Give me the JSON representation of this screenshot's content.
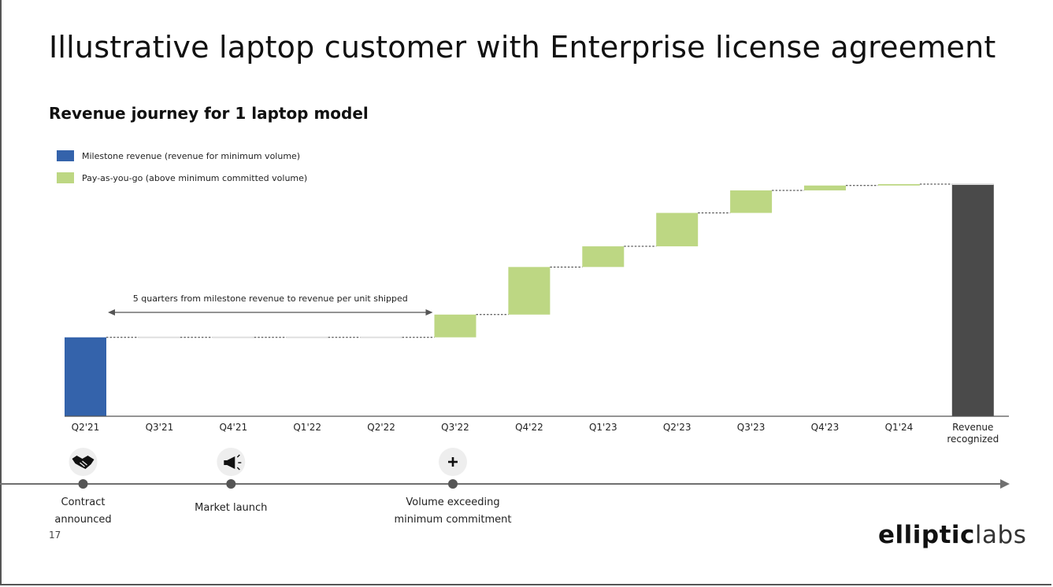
{
  "title": "Illustrative laptop customer with Enterprise license agreement",
  "subtitle": "Revenue journey for 1 laptop model",
  "page_number": "17",
  "logo": {
    "part1": "elliptic",
    "part2": "labs"
  },
  "colors": {
    "milestone": "#3463ab",
    "payg": "#bdd783",
    "total": "#4a4a4a",
    "axis": "#555555",
    "timeline": "#707070"
  },
  "chart_data": {
    "type": "bar",
    "subtype": "waterfall",
    "categories": [
      "Q2'21",
      "Q3'21",
      "Q4'21",
      "Q1'22",
      "Q2'22",
      "Q3'22",
      "Q4'22",
      "Q1'23",
      "Q2'23",
      "Q3'23",
      "Q4'23",
      "Q1'24",
      "Revenue recognized"
    ],
    "category_lines": [
      [
        "Q2'21"
      ],
      [
        "Q3'21"
      ],
      [
        "Q4'21"
      ],
      [
        "Q1'22"
      ],
      [
        "Q2'22"
      ],
      [
        "Q3'22"
      ],
      [
        "Q4'22"
      ],
      [
        "Q1'23"
      ],
      [
        "Q2'23"
      ],
      [
        "Q3'23"
      ],
      [
        "Q4'23"
      ],
      [
        "Q1'24"
      ],
      [
        "Revenue",
        "recognized"
      ]
    ],
    "series": [
      {
        "name": "Milestone revenue (revenue for minimum volume)",
        "kind": "milestone",
        "values": [
          34,
          0,
          0,
          0,
          0,
          0,
          0,
          0,
          0,
          0,
          0,
          0,
          0
        ]
      },
      {
        "name": "Pay-as-you-go (above minimum committed volume)",
        "kind": "payg",
        "values": [
          0,
          0,
          0,
          0,
          0,
          9.8,
          20.5,
          8.9,
          14.4,
          9.7,
          2.1,
          0.6,
          0
        ]
      }
    ],
    "total": {
      "category": "Revenue recognized",
      "value": 100
    },
    "ylim": [
      0,
      100
    ],
    "annotation": {
      "text": "5 quarters from milestone revenue to revenue per unit shipped",
      "from": "Q2'21",
      "to": "Q3'22"
    },
    "legend": "top-left"
  },
  "timeline": {
    "events": [
      {
        "category": "Q2'21",
        "icon": "handshake-icon",
        "label_lines": [
          "Contract",
          "announced"
        ]
      },
      {
        "category": "Q4'21",
        "icon": "megaphone-icon",
        "label_lines": [
          "Market launch"
        ]
      },
      {
        "category": "Q3'22",
        "icon": "plus-icon",
        "label_lines": [
          "Volume exceeding",
          "minimum commitment"
        ]
      }
    ]
  }
}
